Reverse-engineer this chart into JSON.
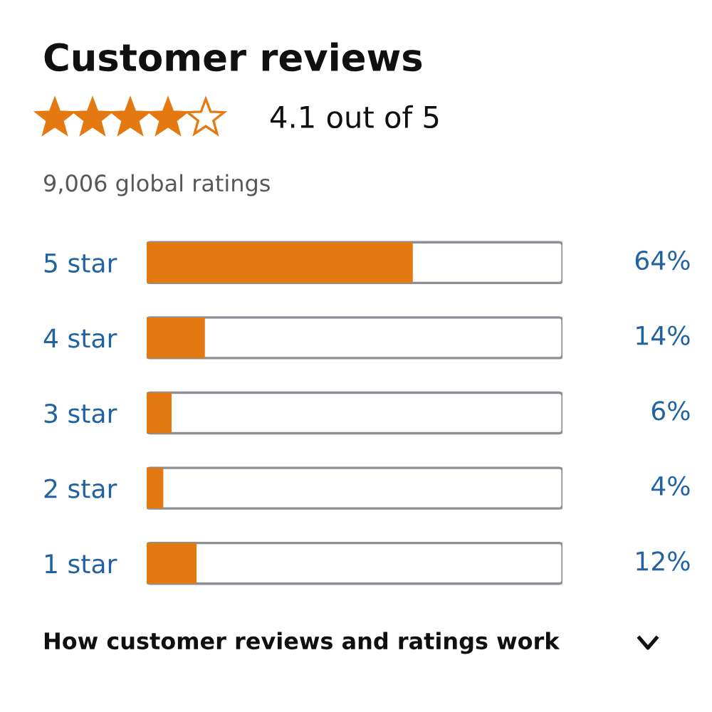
{
  "chart_data": {
    "type": "bar",
    "orientation": "horizontal",
    "title": "Customer reviews",
    "subtitle": "4.1 out of 5",
    "categories": [
      "5 star",
      "4 star",
      "3 star",
      "2 star",
      "1 star"
    ],
    "values": [
      64,
      14,
      6,
      4,
      12
    ],
    "color": "#e47911",
    "value_labels": [
      "64%",
      "14%",
      "6%",
      "4%",
      "12%"
    ],
    "xlim": [
      0,
      100
    ],
    "grid": false,
    "tick_labels": "y",
    "annotations": [
      "9,006 global ratings",
      "How customer reviews and ratings work"
    ]
  }
}
